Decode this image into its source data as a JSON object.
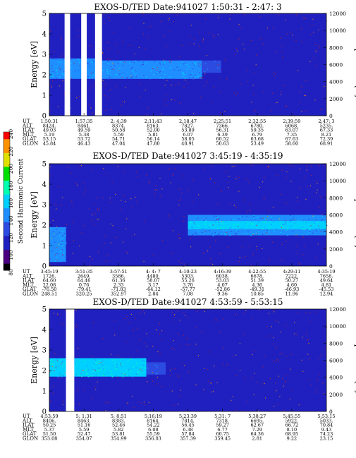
{
  "colorbar": {
    "title": "Second Harmonic Current",
    "ticks": [
      "80",
      "100",
      "120",
      "140",
      "160",
      "180",
      "200",
      "220",
      "240"
    ],
    "colors": [
      "#000000",
      "#4b0082",
      "#2020c0",
      "#2c4be0",
      "#1f8fff",
      "#00d0ff",
      "#00ffb0",
      "#00e000",
      "#e0e000",
      "#ff9000",
      "#ff0000"
    ]
  },
  "panels": [
    {
      "title": "EXOS-D/TED   Date:941027   1:50:31 - 2:47: 3",
      "ylabel": "Energy [eV]",
      "y2label": "Temperature [K]",
      "yticks": [
        "0",
        "1",
        "2",
        "3",
        "4",
        "5"
      ],
      "y2ticks": [
        "0",
        "2000",
        "4000",
        "6000",
        "8000",
        "10000",
        "12000"
      ],
      "row_labels": [
        "UT",
        "ALT",
        "ILAT",
        "MLT",
        "GLAT",
        "GLON"
      ],
      "columns": [
        [
          "1:50:31",
          "8424.",
          "49.03",
          "5.19",
          "53.15",
          "45.84"
        ],
        [
          "1:57:35",
          "8461.",
          "49.59",
          "5.38",
          "53.72",
          "46.43"
        ],
        [
          "2: 4:39",
          "8374.",
          "50.58",
          "5.59",
          "54.71",
          "47.04"
        ],
        [
          "2:11:43",
          "8163.",
          "52.00",
          "5.81",
          "56.14",
          "47.80"
        ],
        [
          "2:18:47",
          "7827.",
          "53.89",
          "6.07",
          "58.05",
          "48.91"
        ],
        [
          "2:25:51",
          "7366.",
          "56.31",
          "6.39",
          "60.52",
          "50.63"
        ],
        [
          "2:32:55",
          "6780.",
          "59.35",
          "6.79",
          "63.68",
          "53.49"
        ],
        [
          "2:39:59",
          "6068.",
          "63.07",
          "7.35",
          "67.63",
          "58.60"
        ],
        [
          "2:47: 3",
          "5235.",
          "67.33",
          "8.21",
          "72.39",
          "68.91"
        ]
      ]
    },
    {
      "title": "EXOS-D/TED   Date:941027   3:45:19 - 4:35:19",
      "ylabel": "Energy [eV]",
      "y2label": "Temperature [K]",
      "yticks": [
        "0",
        "1",
        "2",
        "3",
        "4",
        "5"
      ],
      "y2ticks": [
        "0",
        "2000",
        "4000",
        "6000",
        "8000",
        "10000",
        "12000"
      ],
      "row_labels": [
        "UT",
        "ALT",
        "ILAT",
        "MLT",
        "GLAT",
        "GLON"
      ],
      "columns": [
        [
          "3:45:19",
          "1726.",
          "64.60",
          "22.08",
          "-76.50",
          "248.51"
        ],
        [
          "3:51:35",
          "2649.",
          "64.46",
          "0.76",
          "-79.41",
          "320.25"
        ],
        [
          "3:57:51",
          "3586.",
          "61.36",
          "2.33",
          "-71.83",
          "352.97"
        ],
        [
          "4: 4: 7",
          "4480.",
          "58.07",
          "3.17",
          "-64.12",
          "2.84"
        ],
        [
          "4:10:23",
          "5303.",
          "55.26",
          "3.70",
          "-57.77",
          "7.08"
        ],
        [
          "4:16:39",
          "6038.",
          "53.03",
          "4.07",
          "-52.86",
          "9.36"
        ],
        [
          "4:22:55",
          "6678.",
          "51.39",
          "4.36",
          "-49.31",
          "10.85"
        ],
        [
          "4:29:11",
          "7222.",
          "50.27",
          "4.60",
          "-46.93",
          "11.96"
        ],
        [
          "4:35:19",
          "7658.",
          "49.64",
          "4.81",
          "-45.53",
          "12.94"
        ]
      ]
    },
    {
      "title": "EXOS-D/TED   Date:941027   4:53:59 - 5:53:15",
      "ylabel": "Energy [eV]",
      "y2label": "Temperature [K]",
      "yticks": [
        "0",
        "1",
        "2",
        "3",
        "4",
        "5"
      ],
      "y2ticks": [
        "0",
        "2000",
        "4000",
        "6000",
        "8000",
        "10000",
        "12000"
      ],
      "row_labels": [
        "UT",
        "ALT",
        "ILAT",
        "MLT",
        "GLAT",
        "GLON"
      ],
      "columns": [
        [
          "4:53:59",
          "8406.",
          "50.25",
          "5.37",
          "51.50",
          "353.08"
        ],
        [
          "5: 1:31",
          "8463.",
          "51.16",
          "5.59",
          "52.47",
          "354.07"
        ],
        [
          "5: 8:51",
          "8383.",
          "52.46",
          "5.82",
          "53.81",
          "354.99"
        ],
        [
          "5:16:19",
          "8164.",
          "54.22",
          "6.08",
          "55.59",
          "356.03"
        ],
        [
          "5:23:39",
          "7814.",
          "56.45",
          "6.38",
          "57.84",
          "357.39"
        ],
        [
          "5:31: 7",
          "7318.",
          "59.27",
          "6.77",
          "60.75",
          "359.45"
        ],
        [
          "5:38:27",
          "6695.",
          "62.67",
          "7.29",
          "64.36",
          "2.81"
        ],
        [
          "5:45:55",
          "5922.",
          "66.72",
          "8.10",
          "68.95",
          "9.22"
        ],
        [
          "5:53:15",
          "5033.",
          "70.84",
          "9.43",
          "74.23",
          "23.15"
        ]
      ]
    }
  ],
  "chart_data": [
    {
      "type": "heatmap",
      "title": "EXOS-D/TED   Date:941027   1:50:31 - 2:47: 3",
      "xlabel": "UT",
      "ylabel": "Energy [eV]",
      "y2label": "Temperature [K]",
      "ylim": [
        0,
        5
      ],
      "y2lim": [
        0,
        12000
      ],
      "x": [
        "1:50:31",
        "1:57:35",
        "2: 4:39",
        "2:11:43",
        "2:18:47",
        "2:25:51",
        "2:32:55",
        "2:39:59",
        "2:47: 3"
      ],
      "colorbar_label": "Second Harmonic Current",
      "colorbar_range": [
        80,
        240
      ],
      "data_gaps": [
        [
          0.055,
          0.075
        ],
        [
          0.115,
          0.135
        ],
        [
          0.165,
          0.19
        ]
      ],
      "bands": [
        {
          "x_range": [
            0.0,
            0.19
          ],
          "energy_range": [
            1.8,
            2.8
          ],
          "level": 140
        },
        {
          "x_range": [
            0.19,
            0.55
          ],
          "energy_range": [
            1.8,
            2.7
          ],
          "level": 150
        },
        {
          "x_range": [
            0.55,
            0.62
          ],
          "energy_range": [
            2.1,
            2.7
          ],
          "level": 135
        }
      ],
      "background_level": 112
    },
    {
      "type": "heatmap",
      "title": "EXOS-D/TED   Date:941027   3:45:19 - 4:35:19",
      "xlabel": "UT",
      "ylabel": "Energy [eV]",
      "y2label": "Temperature [K]",
      "ylim": [
        0,
        5
      ],
      "y2lim": [
        0,
        12000
      ],
      "x": [
        "3:45:19",
        "3:51:35",
        "3:57:51",
        "4: 4: 7",
        "4:10:23",
        "4:16:39",
        "4:22:55",
        "4:29:11",
        "4:35:19"
      ],
      "colorbar_label": "Second Harmonic Current",
      "colorbar_range": [
        80,
        240
      ],
      "bands": [
        {
          "x_range": [
            0.0,
            0.06
          ],
          "energy_range": [
            0.2,
            1.9
          ],
          "level": 150
        },
        {
          "x_range": [
            0.5,
            1.0
          ],
          "energy_range": [
            1.5,
            2.5
          ],
          "level": 150
        },
        {
          "x_range": [
            0.5,
            1.0
          ],
          "energy_range": [
            1.8,
            2.2
          ],
          "level": 165
        }
      ],
      "background_level": 112
    },
    {
      "type": "heatmap",
      "title": "EXOS-D/TED   Date:941027   4:53:59 - 5:53:15",
      "xlabel": "UT",
      "ylabel": "Energy [eV]",
      "y2label": "Temperature [K]",
      "ylim": [
        0,
        5
      ],
      "y2lim": [
        0,
        12000
      ],
      "x": [
        "4:53:59",
        "5: 1:31",
        "5: 8:51",
        "5:16:19",
        "5:23:39",
        "5:31: 7",
        "5:38:27",
        "5:45:55",
        "5:53:15"
      ],
      "colorbar_label": "Second Harmonic Current",
      "colorbar_range": [
        80,
        240
      ],
      "data_gaps": [
        [
          0.06,
          0.09
        ]
      ],
      "bands": [
        {
          "x_range": [
            0.0,
            0.35
          ],
          "energy_range": [
            1.7,
            2.6
          ],
          "level": 155
        },
        {
          "x_range": [
            0.35,
            0.42
          ],
          "energy_range": [
            1.8,
            2.4
          ],
          "level": 135
        }
      ],
      "background_level": 112
    }
  ]
}
